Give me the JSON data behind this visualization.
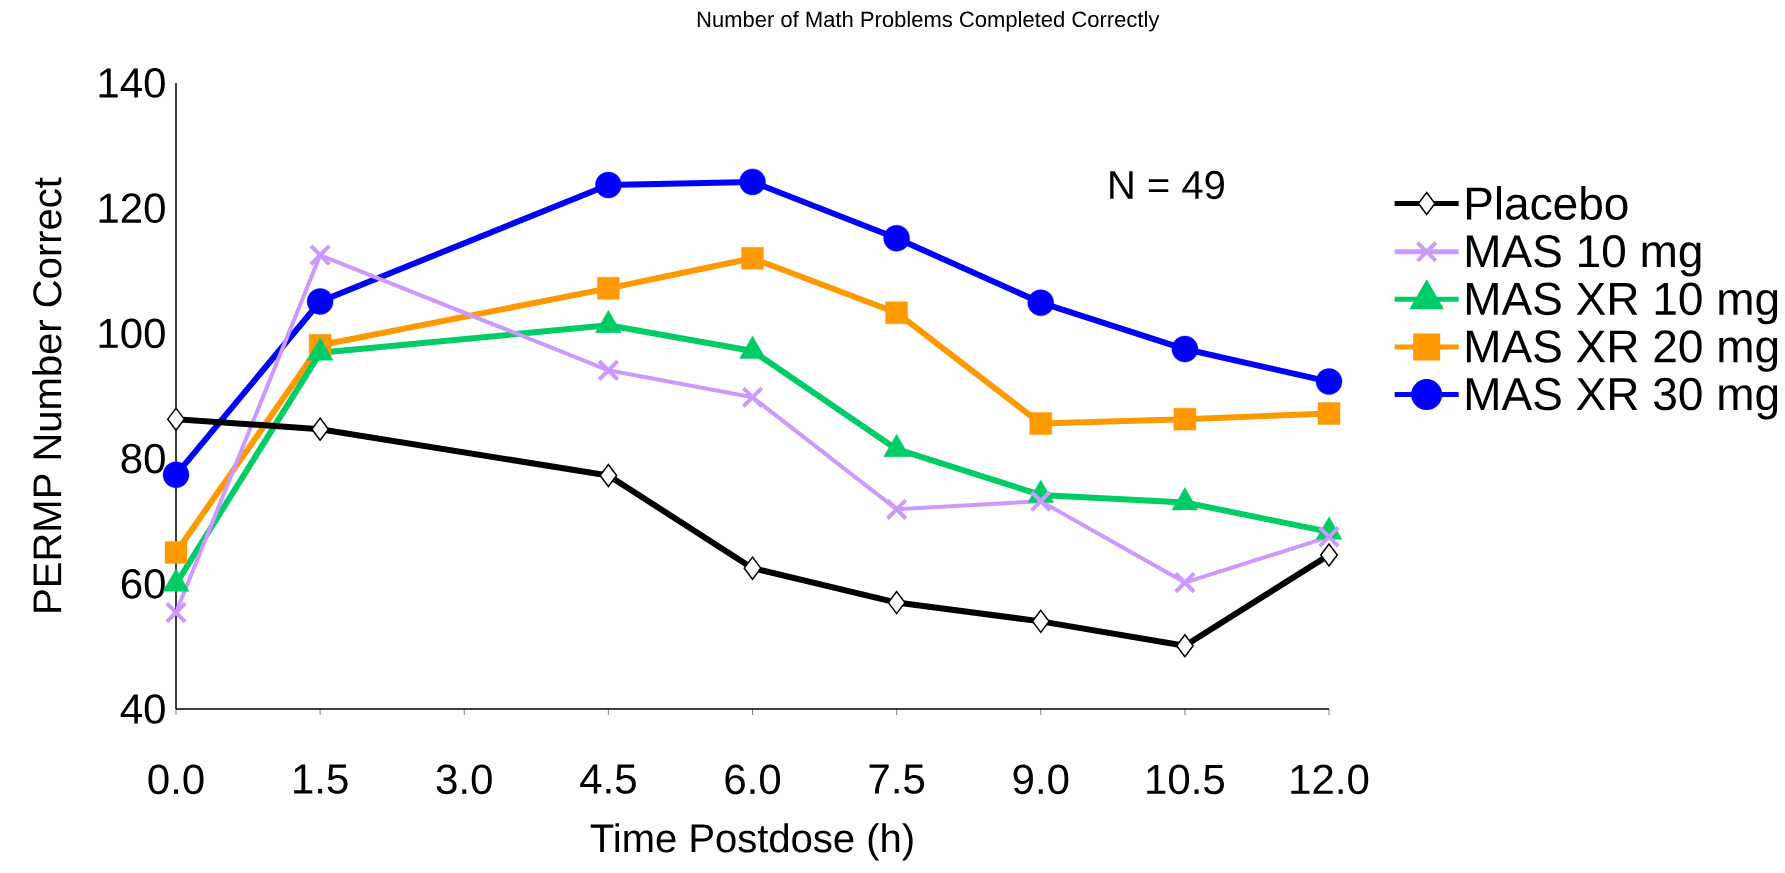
{
  "chart_data": {
    "type": "line",
    "title": "Number of Math Problems Completed Correctly",
    "xlabel": "Time Postdose (h)",
    "ylabel": "PERMP Number Correct",
    "annotations": [
      "N = 49"
    ],
    "x": [
      0,
      1.5,
      4.5,
      6,
      7.5,
      9,
      10.5,
      12
    ],
    "series": [
      {
        "name": "Placebo",
        "color": "#000000",
        "marker": "diamond",
        "values": [
          86.3,
          84.7,
          77.3,
          62.5,
          57.0,
          54.0,
          50.1,
          64.6
        ]
      },
      {
        "name": "MAS 10 mg",
        "color": "#cc99ff",
        "marker": "cross",
        "values": [
          55.4,
          112.5,
          94.1,
          89.8,
          71.9,
          73.2,
          60.2,
          67.5
        ]
      },
      {
        "name": "MAS XR 10 mg",
        "color": "#00cc66",
        "marker": "triangle",
        "values": [
          60.0,
          96.9,
          101.3,
          97.2,
          81.5,
          74.2,
          73.0,
          68.3
        ]
      },
      {
        "name": "MAS XR 20 mg",
        "color": "#ff9900",
        "marker": "square",
        "values": [
          65.0,
          98.1,
          107.2,
          112.0,
          103.3,
          85.6,
          86.3,
          87.2
        ]
      },
      {
        "name": "MAS XR 30 mg",
        "color": "#0000ff",
        "marker": "circle",
        "values": [
          77.4,
          105.1,
          123.7,
          124.2,
          115.2,
          104.9,
          97.5,
          92.3
        ]
      }
    ],
    "xlim": [
      0,
      12
    ],
    "xticks": [
      {
        "value": 0,
        "label": "0.0"
      },
      1.5,
      {
        "value": 3,
        "label": "3.0"
      },
      4.5,
      {
        "value": 6,
        "label": "6.0"
      },
      7.5,
      {
        "value": 9,
        "label": "9.0"
      },
      10.5,
      {
        "value": 12,
        "label": "12.0"
      }
    ],
    "ylim": [
      40,
      140
    ],
    "yticks": [
      40,
      60,
      80,
      100,
      120,
      140
    ],
    "grid": false,
    "legend": "right"
  }
}
